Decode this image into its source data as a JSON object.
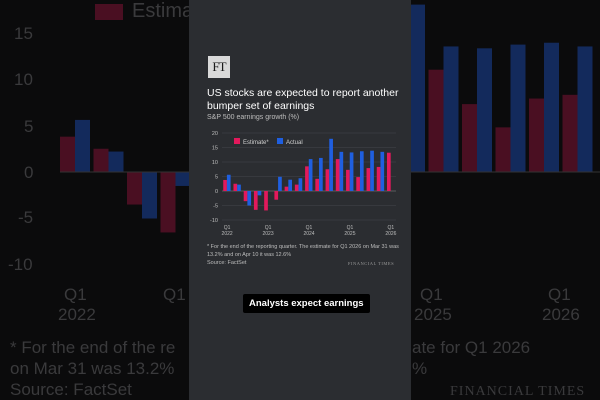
{
  "article": {
    "logo": "FT",
    "headline": "US stocks are expected to report another bumper set of earnings",
    "subtitle": "S&P 500 earnings growth (%)",
    "footnote": "* For the end of the reporting quarter. The estimate for Q1 2026 on Mar 31 was 13.2% and on Apr 10 it was 12.6%",
    "source": "Source: FactSet",
    "credit": "FINANCIAL TIMES"
  },
  "caption": "Analysts expect earnings",
  "background": {
    "legend": "Estimate",
    "y_ticks": [
      "15",
      "10",
      "5",
      "0",
      "-5",
      "-10"
    ],
    "x_left": [
      "Q1",
      "2022"
    ],
    "x_left2": "Q1",
    "x_right": [
      "Q1",
      "2025"
    ],
    "x_right2": [
      "Q1",
      "2026"
    ],
    "foot1": "* For the end of the re",
    "foot1b": "ate for Q1 2026",
    "foot2": "on Mar 31 was 13.2%",
    "foot2b": "%",
    "foot3": "Source: FactSet",
    "credit": "FINANCIAL TIMES"
  },
  "colors": {
    "estimate": "#e3195c",
    "actual": "#1f5fe0"
  },
  "chart_data": {
    "type": "bar",
    "title": "S&P 500 earnings growth (%)",
    "ylim": [
      -10,
      20
    ],
    "y_ticks": [
      20,
      15,
      10,
      5,
      0,
      -5,
      -10
    ],
    "x_ticks": [
      {
        "index": 0,
        "label": [
          "Q1",
          "2022"
        ]
      },
      {
        "index": 4,
        "label": [
          "Q1",
          "2023"
        ]
      },
      {
        "index": 8,
        "label": [
          "Q1",
          "2024"
        ]
      },
      {
        "index": 12,
        "label": [
          "Q1",
          "2025"
        ]
      },
      {
        "index": 16,
        "label": [
          "Q1",
          "2026"
        ]
      }
    ],
    "series": [
      {
        "name": "Estimate*",
        "values": [
          3.8,
          2.5,
          -3.5,
          -6.5,
          -6.7,
          -3.0,
          1.5,
          2.2,
          8.5,
          4.2,
          7.5,
          11.0,
          7.3,
          4.8,
          7.9,
          8.3,
          13.2
        ]
      },
      {
        "name": "Actual",
        "values": [
          5.6,
          2.2,
          -5.0,
          -1.5,
          null,
          4.9,
          3.9,
          4.4,
          11.0,
          11.4,
          18.0,
          13.5,
          13.3,
          13.7,
          13.9,
          13.5,
          null
        ]
      }
    ]
  }
}
